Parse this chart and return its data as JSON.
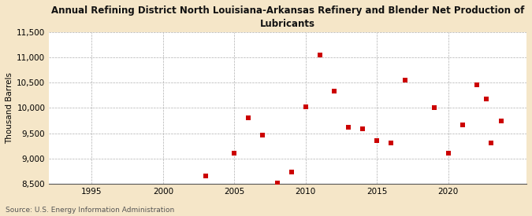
{
  "title": "Annual Refining District North Louisiana-Arkansas Refinery and Blender Net Production of\nLubricants",
  "ylabel": "Thousand Barrels",
  "source": "Source: U.S. Energy Information Administration",
  "fig_background_color": "#f5e6c8",
  "plot_background_color": "#ffffff",
  "marker_color": "#cc0000",
  "xlim": [
    1992,
    2025.5
  ],
  "ylim": [
    8500,
    11500
  ],
  "yticks": [
    8500,
    9000,
    9500,
    10000,
    10500,
    11000,
    11500
  ],
  "xticks": [
    1995,
    2000,
    2005,
    2010,
    2015,
    2020
  ],
  "data": [
    [
      2003,
      8650
    ],
    [
      2005,
      9100
    ],
    [
      2006,
      9800
    ],
    [
      2007,
      9470
    ],
    [
      2008,
      8520
    ],
    [
      2009,
      8730
    ],
    [
      2010,
      10020
    ],
    [
      2011,
      11050
    ],
    [
      2012,
      10330
    ],
    [
      2013,
      9620
    ],
    [
      2014,
      9580
    ],
    [
      2015,
      9360
    ],
    [
      2016,
      9300
    ],
    [
      2017,
      10550
    ],
    [
      2019,
      10000
    ],
    [
      2020,
      9100
    ],
    [
      2021,
      9660
    ],
    [
      2022,
      10450
    ],
    [
      2022.7,
      10180
    ],
    [
      2023,
      9310
    ],
    [
      2023.7,
      9740
    ]
  ]
}
